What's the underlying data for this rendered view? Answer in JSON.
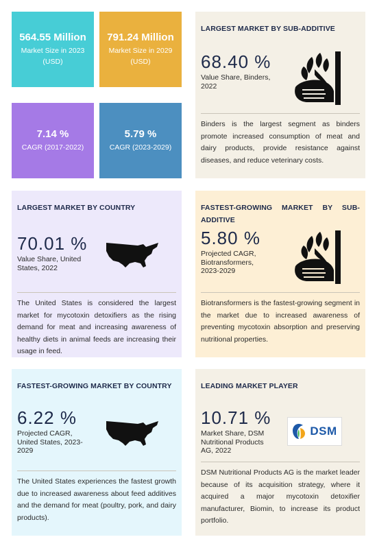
{
  "stats": [
    {
      "big": "564.55 Million",
      "line1": "Market Size in 2023",
      "line2": "(USD)",
      "color": "#47cdd6"
    },
    {
      "big": "791.24 Million",
      "line1": "Market Size in 2029",
      "line2": "(USD)",
      "color": "#eab13e"
    },
    {
      "big": "7.14 %",
      "line1": "CAGR (2017-2022)",
      "line2": "",
      "color": "#a57ae6"
    },
    {
      "big": "5.79 %",
      "line1": "CAGR (2023-2029)",
      "line2": "",
      "color": "#4c8fc0"
    }
  ],
  "sub_additive": {
    "heading": "LARGEST MARKET BY SUB-ADDITIVE",
    "pct": "68.40 %",
    "sub": [
      "Value Share, Binders,",
      "2022"
    ],
    "desc": "Binders is the largest segment as binders promote increased consumption of meat and dairy products, provide resistance against diseases, and reduce veterinary costs.",
    "icon": "hand-with-plant-icon"
  },
  "country": {
    "heading": "LARGEST MARKET BY COUNTRY",
    "pct": "70.01 %",
    "sub": [
      "Value Share, United",
      "States, 2022"
    ],
    "desc": "The United States is considered the largest market for mycotoxin detoxifiers as the rising demand for meat and increasing awareness of healthy diets in animal feeds are increasing their usage in feed.",
    "icon": "usa-map-icon"
  },
  "fastest_sub_additive": {
    "heading_line1": "FASTEST-GROWING MARKET BY SUB-",
    "heading_line2": "ADDITIVE",
    "pct": "5.80 %",
    "sub": [
      "Projected CAGR,",
      "Biotransformers,",
      "2023-2029"
    ],
    "desc": "Biotransformers is the fastest-growing segment in the market due to increased awareness of preventing mycotoxin absorption and preserving nutritional properties.",
    "icon": "hand-with-plant-icon"
  },
  "fastest_country": {
    "heading": "FASTEST-GROWING MARKET BY COUNTRY",
    "pct": "6.22 %",
    "sub": [
      "Projected CAGR,",
      "United States, 2023-",
      "2029"
    ],
    "desc": "The United States experiences the fastest growth due to increased awareness about feed additives and the demand for meat (poultry, pork, and dairy products).",
    "icon": "usa-map-icon"
  },
  "leading_player": {
    "heading": "LEADING MARKET PLAYER",
    "pct": "10.71 %",
    "sub": [
      "Market Share, DSM",
      "Nutritional Products",
      "AG, 2022"
    ],
    "logo_text": "DSM",
    "desc": "DSM Nutritional Products AG is the market leader because of its acquisition strategy, where it acquired a major mycotoxin detoxifier manufacturer, Biomin, to increase its product portfolio."
  }
}
